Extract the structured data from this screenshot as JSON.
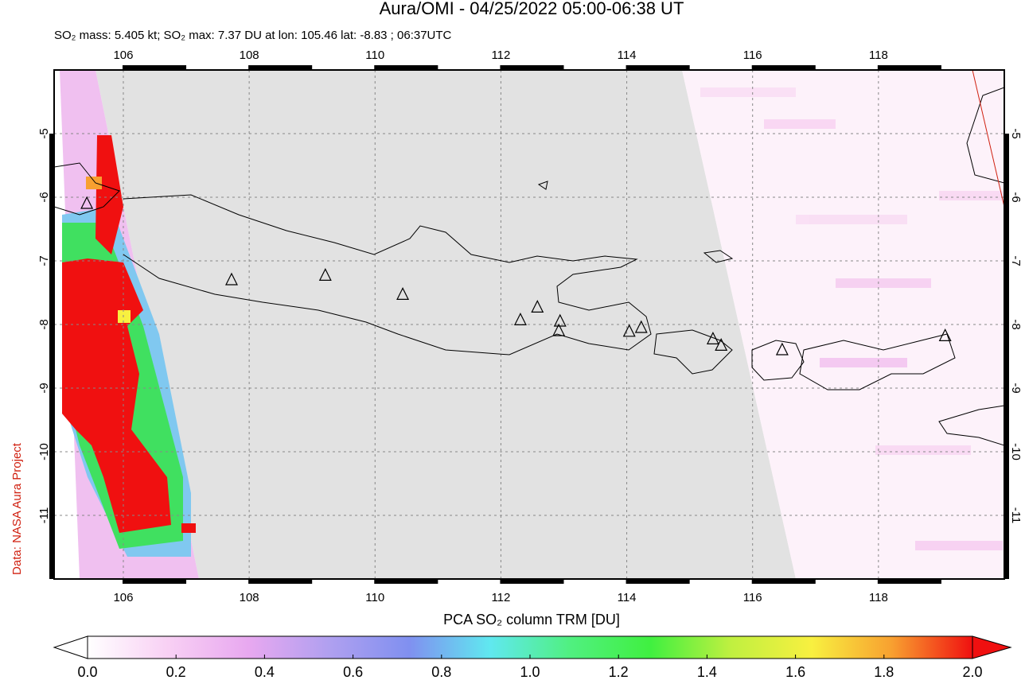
{
  "chart_data": {
    "type": "map",
    "title": "Aura/OMI - 04/25/2022 05:00-06:38 UT",
    "subtitle": "SO₂ mass: 5.405 kt; SO₂ max: 7.37 DU at lon: 105.46 lat: -8.83 ; 06:37UTC",
    "credit": "Data: NASA Aura Project",
    "xlim": [
      104.9,
      120.0
    ],
    "ylim": [
      -12.0,
      -4.0
    ],
    "xticks": [
      106,
      108,
      110,
      112,
      114,
      116,
      118
    ],
    "yticks": [
      -5,
      -6,
      -7,
      -8,
      -9,
      -10,
      -11
    ],
    "grid": true,
    "markers": {
      "x": [
        107.72,
        109.21,
        110.44,
        112.31,
        112.58,
        112.94,
        112.92,
        114.04,
        114.23,
        115.37,
        115.5,
        116.47,
        119.06,
        105.42
      ],
      "y": [
        -7.3,
        -7.23,
        -7.53,
        -7.93,
        -7.73,
        -7.95,
        -8.1,
        -8.11,
        -8.05,
        -8.23,
        -8.33,
        -8.4,
        -8.18,
        -6.1
      ]
    },
    "colorbar": {
      "label": "PCA SO₂ column TRM [DU]",
      "lim": [
        0.0,
        2.0
      ],
      "colors": [
        "#ffffff",
        "#f8d0f4",
        "#e8a8f0",
        "#b0a0f0",
        "#8090f0",
        "#60e8f0",
        "#50f080",
        "#40f040",
        "#c0f040",
        "#f8f040",
        "#f8a030",
        "#f01010"
      ],
      "ticks": [
        {
          "value": 0.0,
          "label": "0.0"
        },
        {
          "value": 0.2,
          "label": "0.2"
        },
        {
          "value": 0.4,
          "label": "0.4"
        },
        {
          "value": 0.6,
          "label": "0.6"
        },
        {
          "value": 0.8,
          "label": "0.8"
        },
        {
          "value": 1.0,
          "label": "1.0"
        },
        {
          "value": 1.2,
          "label": "1.2"
        },
        {
          "value": 1.4,
          "label": "1.4"
        },
        {
          "value": 1.6,
          "label": "1.6"
        },
        {
          "value": 1.8,
          "label": "1.8"
        },
        {
          "value": 2.0,
          "label": "2.0"
        }
      ]
    }
  }
}
